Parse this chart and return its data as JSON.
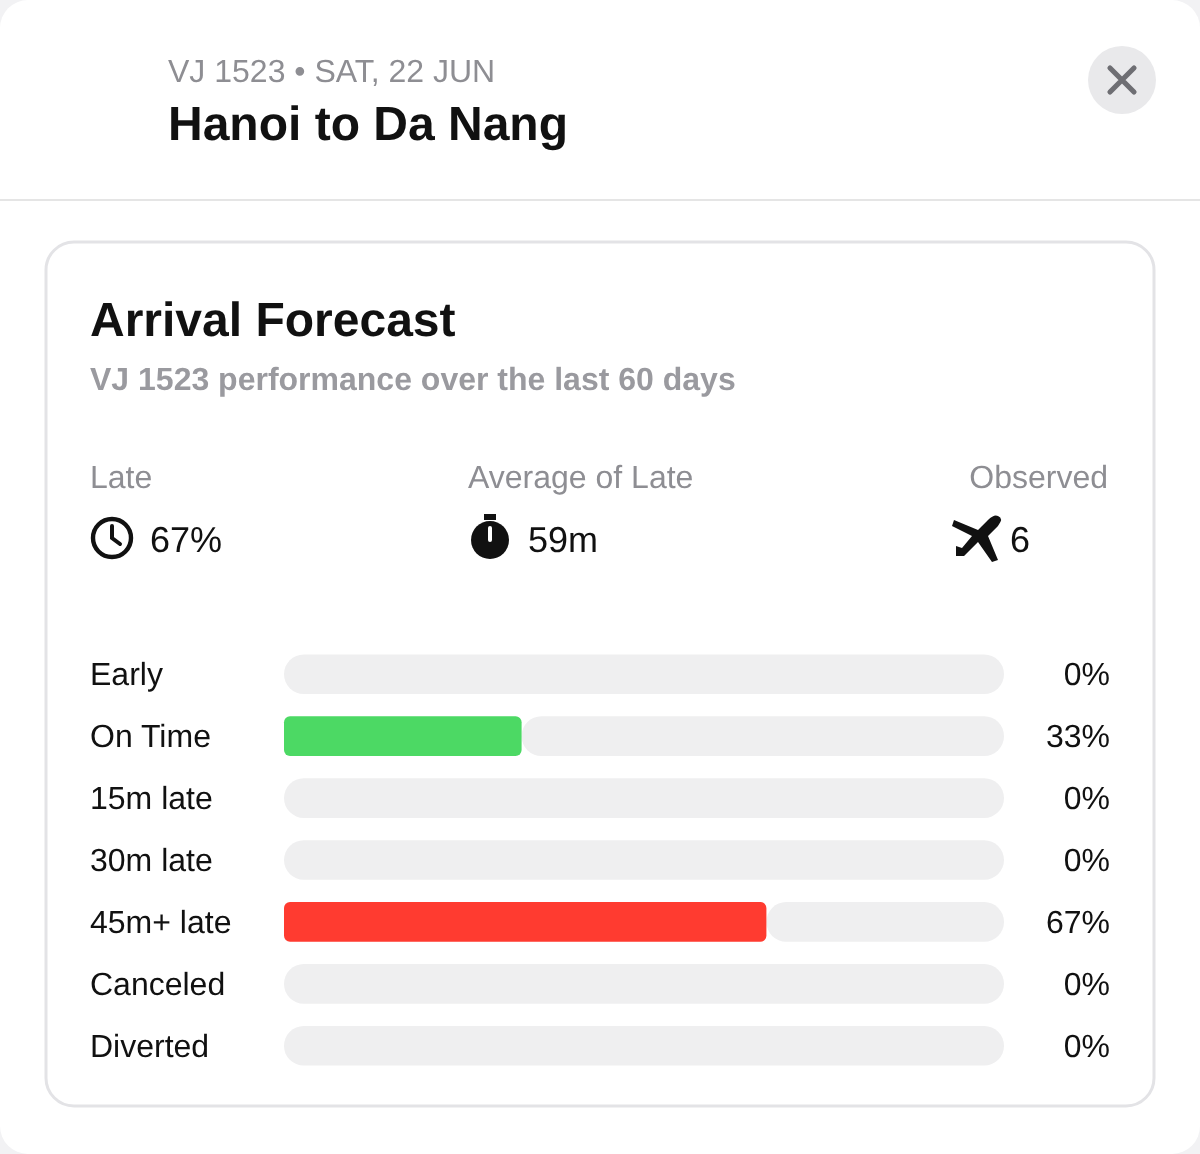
{
  "chart_data": {
    "type": "bar",
    "orientation": "horizontal",
    "stacked": true,
    "title": "Arrival Forecast",
    "subtitle": "VJ 1523 performance over the last 60 days",
    "categories": [
      "Early",
      "On Time",
      "15m late",
      "30m late",
      "45m+ late",
      "Canceled",
      "Diverted"
    ],
    "series": [
      {
        "colors": [
          "#d1d1d6",
          "#4cd964",
          "#d1d1d6",
          "#d1d1d6",
          "#ff3b30",
          "#d1d1d6",
          "#d1d1d6"
        ],
        "values": [
          0,
          33,
          0,
          0,
          67,
          0,
          0
        ],
        "value_labels": [
          "0%",
          "33%",
          "0%",
          "0%",
          "67%",
          "0%",
          "0%"
        ]
      },
      {
        "color": "#efeff0",
        "values": [
          100,
          67,
          100,
          100,
          33,
          100,
          100
        ]
      }
    ],
    "xlim": [
      0,
      100
    ],
    "tick_labels": "y",
    "annotations": [
      "VJ 1523 • SAT, 22 JUN",
      "Hanoi to Da Nang",
      "Late",
      "67%",
      "Average of Late",
      "59m",
      "Observed",
      "6"
    ]
  }
}
